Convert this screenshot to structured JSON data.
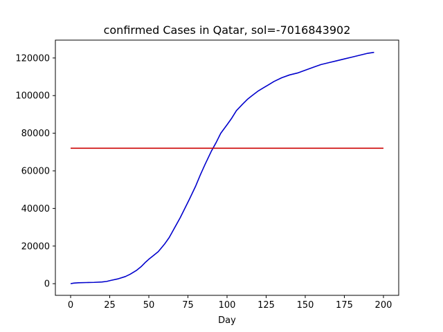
{
  "chart_data": {
    "type": "line",
    "title": "confirmed Cases in Qatar, sol=-7016843902",
    "xlabel": "Day",
    "ylabel": "",
    "xlim": [
      -9.75,
      209.75
    ],
    "ylim": [
      -6200,
      129500
    ],
    "xticks": [
      0,
      25,
      50,
      75,
      100,
      125,
      150,
      175,
      200
    ],
    "yticks": [
      0,
      20000,
      40000,
      60000,
      80000,
      100000,
      120000
    ],
    "grid": false,
    "series": [
      {
        "color": "#0000cc",
        "x": [
          0,
          2,
          5,
          10,
          15,
          20,
          23,
          26,
          30,
          35,
          38,
          42,
          45,
          48,
          50,
          53,
          56,
          58,
          60,
          63,
          65,
          67,
          70,
          73,
          76,
          80,
          83,
          86,
          90,
          93,
          96,
          100,
          103,
          106,
          110,
          113,
          116,
          120,
          123,
          126,
          130,
          135,
          140,
          145,
          150,
          155,
          160,
          165,
          170,
          175,
          180,
          185,
          190,
          194
        ],
        "y": [
          0,
          300,
          500,
          600,
          700,
          900,
          1200,
          1800,
          2500,
          3800,
          5000,
          7000,
          9000,
          11500,
          13000,
          15000,
          17000,
          19000,
          21000,
          24500,
          27500,
          30500,
          35000,
          40000,
          45000,
          52000,
          58000,
          63500,
          70500,
          75000,
          80000,
          84500,
          88000,
          92000,
          95500,
          98000,
          100000,
          102500,
          104000,
          105500,
          107500,
          109500,
          111000,
          112000,
          113500,
          115000,
          116500,
          117500,
          118500,
          119500,
          120500,
          121500,
          122500,
          123000
        ]
      },
      {
        "color": "#cc0000",
        "x": [
          0,
          200
        ],
        "y": [
          72000,
          72000
        ]
      }
    ]
  }
}
